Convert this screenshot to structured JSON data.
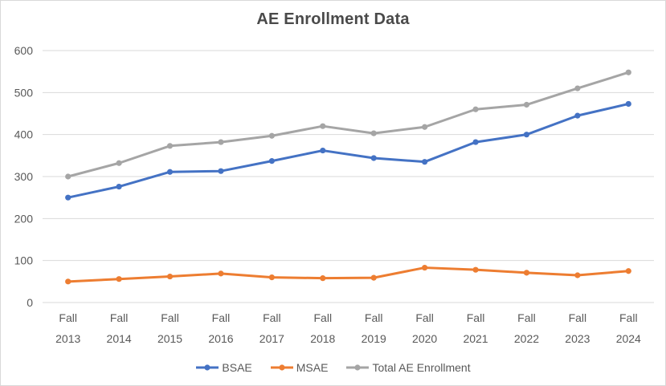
{
  "chart_data": {
    "type": "line",
    "title": "AE Enrollment Data",
    "categories": [
      "Fall 2013",
      "Fall 2014",
      "Fall 2015",
      "Fall 2016",
      "Fall 2017",
      "Fall 2018",
      "Fall 2019",
      "Fall 2020",
      "Fall 2021",
      "Fall 2022",
      "Fall 2023",
      "Fall 2024"
    ],
    "series": [
      {
        "name": "BSAE",
        "color": "#4472C4",
        "values": [
          250,
          276,
          311,
          313,
          337,
          362,
          344,
          335,
          382,
          400,
          445,
          473
        ]
      },
      {
        "name": "MSAE",
        "color": "#ED7D31",
        "values": [
          50,
          56,
          62,
          69,
          60,
          58,
          59,
          83,
          78,
          71,
          65,
          75
        ]
      },
      {
        "name": "Total AE Enrollment",
        "color": "#A5A5A5",
        "values": [
          300,
          332,
          373,
          382,
          397,
          420,
          403,
          418,
          460,
          471,
          510,
          548
        ]
      }
    ],
    "ylim": [
      0,
      600
    ],
    "yticks": [
      0,
      100,
      200,
      300,
      400,
      500,
      600
    ],
    "xlabel": "",
    "ylabel": "",
    "grid": true,
    "legend_position": "bottom",
    "grid_color": "#d9d9d9",
    "axis_text_color": "#595959",
    "title_color": "#4a4a4a",
    "background_color": "#ffffff"
  }
}
